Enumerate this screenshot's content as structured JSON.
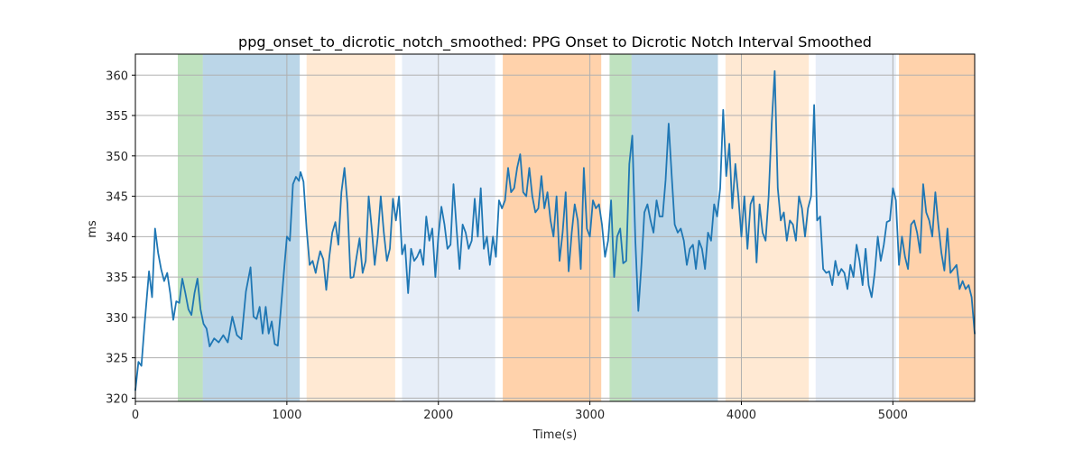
{
  "chart_data": {
    "type": "line",
    "title": "ppg_onset_to_dicrotic_notch_smoothed: PPG Onset to Dicrotic Notch Interval Smoothed",
    "xlabel": "Time(s)",
    "ylabel": "ms",
    "xlim": [
      0,
      5540
    ],
    "ylim": [
      319.6,
      362.6
    ],
    "xticks": [
      0,
      1000,
      2000,
      3000,
      4000,
      5000
    ],
    "yticks": [
      320,
      325,
      330,
      335,
      340,
      345,
      350,
      355,
      360
    ],
    "grid": true,
    "line_color": "#1f77b4",
    "bands": [
      {
        "x0": 280,
        "x1": 445,
        "color": "#2ca02c",
        "opacity": 0.3
      },
      {
        "x0": 445,
        "x1": 1085,
        "color": "#1f77b4",
        "opacity": 0.3
      },
      {
        "x0": 1130,
        "x1": 1715,
        "color": "#ffbf80",
        "opacity": 0.35
      },
      {
        "x0": 1760,
        "x1": 2375,
        "color": "#aec7e8",
        "opacity": 0.3
      },
      {
        "x0": 2425,
        "x1": 3075,
        "color": "#ff7f0e",
        "opacity": 0.35
      },
      {
        "x0": 3130,
        "x1": 3275,
        "color": "#2ca02c",
        "opacity": 0.3
      },
      {
        "x0": 3275,
        "x1": 3845,
        "color": "#1f77b4",
        "opacity": 0.3
      },
      {
        "x0": 3895,
        "x1": 4445,
        "color": "#ffbf80",
        "opacity": 0.35
      },
      {
        "x0": 4490,
        "x1": 5020,
        "color": "#aec7e8",
        "opacity": 0.3
      },
      {
        "x0": 5040,
        "x1": 5540,
        "color": "#ff7f0e",
        "opacity": 0.35
      }
    ],
    "series": [
      {
        "x": [
          0,
          20,
          40,
          60,
          90,
          110,
          130,
          150,
          170,
          190,
          210,
          230,
          250,
          270,
          290,
          310,
          330,
          350,
          370,
          390,
          410,
          430,
          450,
          470,
          490,
          520,
          550,
          580,
          610,
          640,
          670,
          700,
          730,
          760,
          780,
          800,
          820,
          840,
          860,
          880,
          900,
          920,
          940,
          960,
          980,
          1000,
          1020,
          1040,
          1060,
          1080,
          1090,
          1110,
          1130,
          1150,
          1170,
          1190,
          1200,
          1220,
          1240,
          1260,
          1280,
          1300,
          1320,
          1340,
          1360,
          1380,
          1400,
          1420,
          1440,
          1460,
          1480,
          1500,
          1520,
          1540,
          1560,
          1580,
          1600,
          1620,
          1640,
          1660,
          1680,
          1700,
          1720,
          1740,
          1760,
          1780,
          1800,
          1820,
          1840,
          1860,
          1880,
          1900,
          1920,
          1940,
          1960,
          1980,
          2000,
          2020,
          2040,
          2060,
          2080,
          2100,
          2120,
          2140,
          2160,
          2180,
          2200,
          2220,
          2240,
          2260,
          2280,
          2300,
          2320,
          2340,
          2360,
          2380,
          2400,
          2420,
          2440,
          2460,
          2480,
          2500,
          2520,
          2540,
          2560,
          2580,
          2600,
          2620,
          2640,
          2660,
          2680,
          2700,
          2720,
          2740,
          2760,
          2780,
          2800,
          2820,
          2840,
          2860,
          2880,
          2900,
          2920,
          2940,
          2960,
          2980,
          3000,
          3020,
          3040,
          3060,
          3080,
          3100,
          3120,
          3140,
          3160,
          3180,
          3200,
          3220,
          3240,
          3260,
          3280,
          3300,
          3320,
          3340,
          3360,
          3380,
          3400,
          3420,
          3440,
          3460,
          3480,
          3500,
          3520,
          3540,
          3560,
          3580,
          3600,
          3620,
          3640,
          3660,
          3680,
          3700,
          3720,
          3740,
          3760,
          3780,
          3800,
          3820,
          3840,
          3860,
          3880,
          3900,
          3920,
          3940,
          3960,
          3980,
          4000,
          4020,
          4040,
          4060,
          4080,
          4100,
          4120,
          4140,
          4160,
          4180,
          4200,
          4220,
          4240,
          4260,
          4280,
          4300,
          4320,
          4340,
          4360,
          4380,
          4400,
          4420,
          4440,
          4460,
          4480,
          4500,
          4520,
          4540,
          4560,
          4580,
          4600,
          4620,
          4640,
          4660,
          4680,
          4700,
          4720,
          4740,
          4760,
          4780,
          4800,
          4820,
          4840,
          4860,
          4880,
          4900,
          4920,
          4940,
          4960,
          4980,
          5000,
          5020,
          5040,
          5060,
          5080,
          5100,
          5120,
          5140,
          5160,
          5180,
          5200,
          5220,
          5240,
          5260,
          5280,
          5300,
          5320,
          5340,
          5360,
          5380,
          5400,
          5420,
          5440,
          5460,
          5480,
          5500,
          5520,
          5540
        ],
        "values": [
          321,
          324.5,
          324,
          329,
          335.7,
          332.5,
          341,
          338,
          336,
          334.5,
          335.5,
          333,
          329.7,
          332,
          331.8,
          334.8,
          333,
          331,
          330.3,
          333,
          334.8,
          331,
          329.2,
          328.6,
          326.4,
          327.4,
          326.9,
          327.8,
          326.9,
          330.1,
          327.8,
          327.3,
          333.2,
          336.2,
          330.1,
          329.8,
          331.3,
          328,
          331.3,
          328,
          329.5,
          326.7,
          326.5,
          331,
          335.5,
          340,
          339.5,
          346.5,
          347.4,
          346.9,
          348,
          346.8,
          341,
          336.5,
          337,
          335.5,
          336.5,
          338.2,
          337.2,
          333.4,
          337.5,
          340.5,
          341.8,
          339,
          345.5,
          348.5,
          344,
          334.9,
          335,
          337.5,
          339.8,
          335.5,
          337,
          345,
          341,
          336.5,
          340,
          345,
          340.5,
          337,
          338.5,
          344.7,
          342,
          345,
          337.8,
          339,
          333,
          338.5,
          337,
          337.5,
          338.4,
          336.5,
          342.5,
          339.5,
          341,
          335,
          340,
          343.7,
          341.5,
          338.5,
          339,
          346.5,
          341,
          336,
          341.5,
          340.5,
          338.5,
          339.5,
          344.7,
          340,
          346,
          338.5,
          340,
          336.5,
          340,
          337.5,
          344.5,
          343.5,
          344.5,
          348.5,
          345.5,
          346,
          348.5,
          350.2,
          345.5,
          345,
          348.5,
          345,
          343,
          343.5,
          347.5,
          343.5,
          345.5,
          342,
          340,
          345,
          337,
          340.5,
          345.5,
          335.7,
          340.5,
          344,
          342,
          336,
          348.5,
          341,
          340,
          344.5,
          343.5,
          344,
          341.5,
          337.5,
          339.5,
          344.5,
          335,
          340,
          341,
          336.7,
          337,
          349,
          352.5,
          339.5,
          330.8,
          336.5,
          343,
          344,
          342,
          340.5,
          344.5,
          342.5,
          342.5,
          347,
          354,
          347.5,
          341.5,
          340.5,
          341,
          339.5,
          336.5,
          338.5,
          339,
          336,
          339.5,
          338.5,
          336,
          340.5,
          339.5,
          344,
          342.5,
          346,
          355.7,
          347.5,
          351.5,
          343.5,
          349,
          345,
          340,
          345,
          338.5,
          344,
          345,
          336.8,
          344,
          340.5,
          339.5,
          345,
          354,
          360.5,
          346,
          342,
          343,
          339.5,
          342,
          341.5,
          339.5,
          345,
          343.5,
          340,
          343.5,
          345,
          356.3,
          342,
          342.5,
          336,
          335.5,
          335.7,
          334,
          337,
          335.2,
          336,
          335.5,
          333.5,
          336.5,
          335,
          339,
          337,
          334,
          338.5,
          334,
          332.5,
          335.5,
          340,
          337,
          339,
          341.8,
          342,
          346,
          344.5,
          336.5,
          340,
          337.5,
          336,
          341.5,
          342,
          340.5,
          338,
          346.5,
          343,
          342,
          340,
          345.5,
          341.5,
          338,
          335.8,
          341,
          335.5,
          336,
          336.5,
          333.5,
          334.5,
          333.5,
          334,
          332.5,
          328
        ]
      }
    ]
  }
}
